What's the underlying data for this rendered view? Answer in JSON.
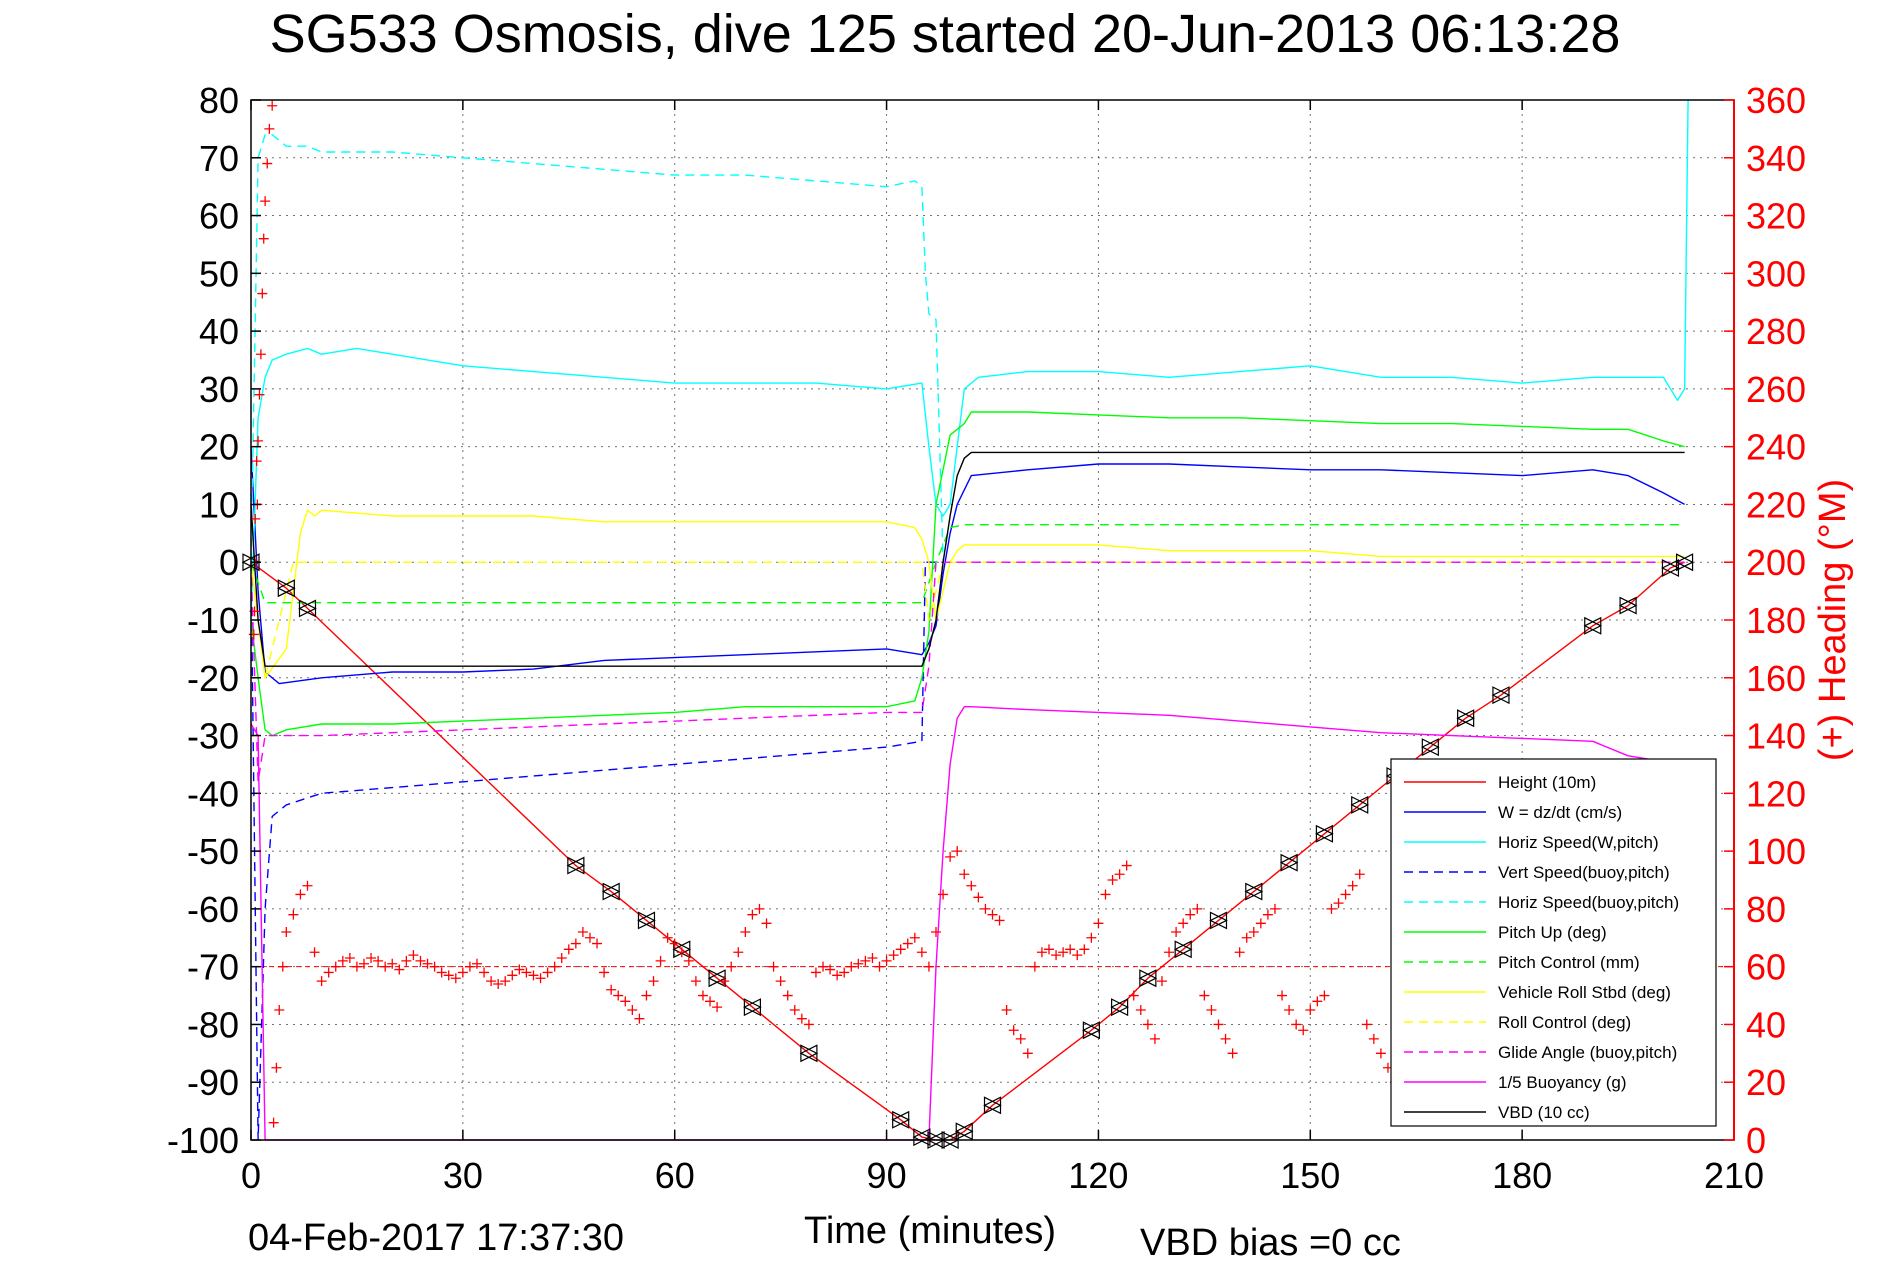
{
  "chart_data": {
    "type": "line",
    "title": "SG533 Osmosis, dive 125 started 20-Jun-2013 06:13:28",
    "xlabel": "Time (minutes)",
    "ylabel_right": "(+) Heading (°M)",
    "xlim": [
      0,
      210
    ],
    "ylim": [
      -100,
      80
    ],
    "ylim_right": [
      0,
      360
    ],
    "x_ticks": [
      0,
      30,
      60,
      90,
      120,
      150,
      180,
      210
    ],
    "y_ticks": [
      -100,
      -90,
      -80,
      -70,
      -60,
      -50,
      -40,
      -30,
      -20,
      -10,
      0,
      10,
      20,
      30,
      40,
      50,
      60,
      70,
      80
    ],
    "y_ticks_right": [
      0,
      20,
      40,
      60,
      80,
      100,
      120,
      140,
      160,
      180,
      200,
      220,
      240,
      260,
      280,
      300,
      320,
      340,
      360
    ],
    "grid": true,
    "legend_position": "lower-right",
    "footer_left": "04-Feb-2017 17:37:30",
    "footer_right": "VBD bias =0 cc",
    "colors": {
      "height": "#ff0000",
      "w": "#0000ff",
      "horiz": "#00ffff",
      "vert_buoy": "#0000ff",
      "horiz_buoy": "#00ffff",
      "pitch": "#00ff00",
      "pitch_ctrl": "#00ff00",
      "roll": "#ffff00",
      "roll_ctrl": "#ffff00",
      "glide": "#ff00ff",
      "buoyancy": "#ff00ff",
      "vbd": "#000000",
      "heading": "#ff0000",
      "right_axis": "#ff0000"
    },
    "series": [
      {
        "name": "Height (10m)",
        "color": "#ff0000",
        "dash": false,
        "x": [
          0,
          5,
          8,
          46,
          51,
          56,
          61,
          66,
          71,
          79,
          92,
          95,
          97,
          99,
          101,
          105,
          119,
          123,
          127,
          132,
          137,
          142,
          147,
          152,
          157,
          162,
          167,
          172,
          177,
          190,
          195,
          201,
          203
        ],
        "y": [
          0,
          -4.5,
          -8,
          -52.5,
          -57,
          -62,
          -67,
          -72,
          -77,
          -85,
          -96.5,
          -99.5,
          -100,
          -100,
          -98.5,
          -94,
          -81,
          -77,
          -72,
          -67,
          -62,
          -57,
          -52,
          -47,
          -42,
          -37,
          -32,
          -27,
          -23,
          -11,
          -7.5,
          -1,
          0
        ]
      },
      {
        "name": "W = dz/dt (cm/s)",
        "color": "#0000ff",
        "dash": false,
        "x": [
          0,
          1,
          2,
          4,
          10,
          20,
          30,
          40,
          50,
          60,
          70,
          80,
          90,
          95,
          96,
          97,
          98,
          99,
          100,
          102,
          110,
          120,
          130,
          140,
          150,
          160,
          170,
          180,
          190,
          195,
          200,
          203
        ],
        "y": [
          20,
          -5,
          -19,
          -21,
          -20,
          -19,
          -19,
          -18.5,
          -17,
          -16.5,
          -16,
          -15.5,
          -15,
          -16,
          -14,
          -11,
          -2,
          5,
          10,
          15,
          16,
          17,
          17,
          16.5,
          16,
          16,
          15.5,
          15,
          16,
          15,
          12,
          10
        ]
      },
      {
        "name": "Horiz Speed(W,pitch)",
        "color": "#00ffff",
        "dash": false,
        "x": [
          0,
          1,
          2,
          3,
          5,
          8,
          10,
          15,
          20,
          30,
          40,
          50,
          60,
          70,
          80,
          90,
          95,
          96,
          97,
          98,
          99,
          100,
          101,
          103,
          110,
          120,
          130,
          140,
          150,
          160,
          170,
          180,
          190,
          200,
          202,
          203,
          203.5
        ],
        "y": [
          -10,
          25,
          32,
          35,
          36,
          37,
          36,
          37,
          36,
          34,
          33,
          32,
          31,
          31,
          31,
          30,
          31,
          20,
          10,
          8,
          10,
          20,
          30,
          32,
          33,
          33,
          32,
          33,
          34,
          32,
          32,
          31,
          32,
          32,
          28,
          30,
          80
        ]
      },
      {
        "name": "Vert Speed(buoy,pitch)",
        "color": "#0000ff",
        "dash": true,
        "x": [
          0,
          1,
          2,
          3,
          5,
          10,
          20,
          30,
          40,
          50,
          60,
          70,
          80,
          90,
          95,
          95.5,
          96,
          100,
          120,
          140,
          160,
          180,
          200,
          203
        ],
        "y": [
          0,
          -100,
          -60,
          -44,
          -42,
          -40,
          -39,
          -38,
          -37,
          -36,
          -35,
          -34,
          -33,
          -32,
          -31,
          0,
          0,
          0,
          0,
          0,
          0,
          0,
          0,
          0
        ]
      },
      {
        "name": "Horiz Speed(buoy,pitch)",
        "color": "#00ffff",
        "dash": true,
        "x": [
          0,
          1,
          2,
          3,
          4,
          5,
          8,
          10,
          20,
          30,
          40,
          50,
          60,
          70,
          80,
          90,
          94,
          95,
          95.5,
          96,
          97,
          98,
          100,
          120,
          160,
          200,
          203
        ],
        "y": [
          0,
          70,
          74,
          74,
          73,
          72,
          72,
          71,
          71,
          70,
          69,
          68,
          67,
          67,
          66,
          65,
          66,
          65,
          50,
          43,
          42,
          0,
          0,
          0,
          0,
          0,
          0
        ]
      },
      {
        "name": "Pitch Up (deg)",
        "color": "#00ff00",
        "dash": false,
        "x": [
          0,
          1,
          2,
          3,
          5,
          10,
          20,
          30,
          40,
          50,
          60,
          70,
          80,
          90,
          94,
          95,
          96,
          97,
          99,
          101,
          102,
          110,
          120,
          130,
          140,
          150,
          160,
          170,
          180,
          190,
          195,
          200,
          203
        ],
        "y": [
          -10,
          -20,
          -29,
          -30,
          -29,
          -28,
          -28,
          -27.5,
          -27,
          -26.5,
          -26,
          -25,
          -25,
          -25,
          -24,
          -20,
          -12,
          10,
          22,
          24,
          26,
          26,
          25.5,
          25,
          25,
          24.5,
          24,
          24,
          23.5,
          23,
          23,
          21,
          20
        ]
      },
      {
        "name": "Pitch Control (mm)",
        "color": "#00ff00",
        "dash": true,
        "x": [
          0,
          2,
          5,
          10,
          30,
          60,
          90,
          95,
          97,
          99,
          101,
          120,
          150,
          180,
          200,
          203
        ],
        "y": [
          0,
          -7,
          -7,
          -7,
          -7,
          -7,
          -7,
          -7,
          0,
          6,
          6.5,
          6.5,
          6.5,
          6.5,
          6.5,
          6.5
        ]
      },
      {
        "name": "Vehicle Roll Stbd (deg)",
        "color": "#ffff00",
        "dash": false,
        "x": [
          0,
          2,
          5,
          7,
          8,
          9,
          10,
          20,
          30,
          40,
          50,
          60,
          70,
          80,
          90,
          94,
          95,
          96,
          97,
          98,
          99,
          100,
          101,
          110,
          120,
          130,
          140,
          150,
          160,
          170,
          180,
          190,
          200,
          203
        ],
        "y": [
          0,
          -20,
          -15,
          5,
          9,
          8,
          9,
          8,
          8,
          8,
          7,
          7,
          7,
          7,
          7,
          6,
          4,
          0,
          -10,
          -5,
          0,
          2,
          3,
          3,
          3,
          2,
          2,
          2,
          1,
          1,
          1,
          1,
          1,
          1
        ]
      },
      {
        "name": "Roll Control (deg)",
        "color": "#ffff00",
        "dash": true,
        "x": [
          0,
          2,
          4,
          6,
          8,
          10,
          30,
          60,
          90,
          95,
          96,
          98,
          100,
          120,
          150,
          180,
          203
        ],
        "y": [
          0,
          -20,
          -10,
          0,
          0,
          0,
          0,
          0,
          0,
          0,
          -10,
          0,
          0,
          0,
          0,
          0,
          0
        ]
      },
      {
        "name": "Glide Angle (buoy,pitch)",
        "color": "#ff00ff",
        "dash": true,
        "x": [
          0,
          1,
          2,
          4,
          10,
          30,
          50,
          70,
          90,
          95,
          96,
          97,
          98,
          100,
          120,
          150,
          180,
          200,
          203
        ],
        "y": [
          0,
          -38,
          -30,
          -30,
          -30,
          -29,
          -28,
          -27,
          -26,
          -26,
          -18,
          0,
          0,
          0,
          0,
          0,
          0,
          0,
          0
        ]
      },
      {
        "name": "1/5 Buoyancy (g)",
        "color": "#ff00ff",
        "dash": false,
        "x": [
          0,
          1,
          2,
          2.5,
          3,
          5,
          94,
          95,
          96,
          97,
          98,
          99,
          100,
          101,
          102,
          110,
          120,
          130,
          140,
          150,
          160,
          170,
          180,
          190,
          192,
          195,
          200,
          203
        ],
        "y": [
          -28,
          -30,
          -100,
          -100,
          -100,
          -100,
          -100,
          -100,
          -100,
          -70,
          -50,
          -35,
          -27,
          -25,
          -25,
          -25.5,
          -26,
          -26.5,
          -27.5,
          -28.5,
          -29.5,
          -30,
          -30.5,
          -31,
          -32,
          -33.5,
          -34.5,
          -35
        ]
      },
      {
        "name": "VBD (10 cc)",
        "color": "#000000",
        "dash": false,
        "x": [
          0,
          1,
          2,
          3,
          5,
          10,
          40,
          70,
          90,
          95,
          96,
          97,
          98,
          99,
          100,
          101,
          102,
          120,
          150,
          180,
          200,
          203
        ],
        "y": [
          10,
          -10,
          -18,
          -18,
          -18,
          -18,
          -18,
          -18,
          -18,
          -18,
          -15,
          -10,
          0,
          8,
          15,
          18,
          19,
          19,
          19,
          19,
          19,
          19
        ]
      }
    ],
    "heading_points": [
      [
        0.4,
        175
      ],
      [
        0.5,
        183
      ],
      [
        0.6,
        215
      ],
      [
        0.7,
        200
      ],
      [
        0.8,
        235
      ],
      [
        0.9,
        220
      ],
      [
        1,
        242
      ],
      [
        1.2,
        258
      ],
      [
        1.4,
        272
      ],
      [
        1.6,
        293
      ],
      [
        1.8,
        312
      ],
      [
        2,
        325
      ],
      [
        2.3,
        338
      ],
      [
        2.6,
        350
      ],
      [
        3,
        358
      ],
      [
        3.2,
        6
      ],
      [
        3.6,
        25
      ],
      [
        4,
        45
      ],
      [
        4.5,
        60
      ],
      [
        5,
        72
      ],
      [
        6,
        78
      ],
      [
        7,
        85
      ],
      [
        8,
        88
      ],
      [
        9,
        65
      ],
      [
        10,
        55
      ],
      [
        11,
        58
      ],
      [
        12,
        60
      ],
      [
        13,
        62
      ],
      [
        14,
        63
      ],
      [
        15,
        60
      ],
      [
        16,
        61
      ],
      [
        17,
        63
      ],
      [
        18,
        62
      ],
      [
        19,
        60
      ],
      [
        20,
        61
      ],
      [
        21,
        59
      ],
      [
        22,
        62
      ],
      [
        23,
        64
      ],
      [
        24,
        62
      ],
      [
        25,
        61
      ],
      [
        26,
        60
      ],
      [
        27,
        58
      ],
      [
        28,
        57
      ],
      [
        29,
        56
      ],
      [
        30,
        58
      ],
      [
        31,
        60
      ],
      [
        32,
        61
      ],
      [
        33,
        58
      ],
      [
        34,
        55
      ],
      [
        35,
        54
      ],
      [
        36,
        55
      ],
      [
        37,
        57
      ],
      [
        38,
        59
      ],
      [
        39,
        58
      ],
      [
        40,
        57
      ],
      [
        41,
        56
      ],
      [
        42,
        58
      ],
      [
        43,
        60
      ],
      [
        44,
        63
      ],
      [
        45,
        66
      ],
      [
        46,
        68
      ],
      [
        47,
        72
      ],
      [
        48,
        70
      ],
      [
        49,
        68
      ],
      [
        50,
        58
      ],
      [
        51,
        52
      ],
      [
        52,
        50
      ],
      [
        53,
        48
      ],
      [
        54,
        45
      ],
      [
        55,
        42
      ],
      [
        56,
        50
      ],
      [
        57,
        55
      ],
      [
        58,
        62
      ],
      [
        59,
        70
      ],
      [
        60,
        68
      ],
      [
        61,
        65
      ],
      [
        62,
        62
      ],
      [
        63,
        55
      ],
      [
        64,
        50
      ],
      [
        65,
        48
      ],
      [
        66,
        46
      ],
      [
        67,
        55
      ],
      [
        68,
        60
      ],
      [
        69,
        65
      ],
      [
        70,
        72
      ],
      [
        71,
        78
      ],
      [
        72,
        80
      ],
      [
        73,
        75
      ],
      [
        74,
        60
      ],
      [
        75,
        55
      ],
      [
        76,
        50
      ],
      [
        77,
        45
      ],
      [
        78,
        42
      ],
      [
        79,
        40
      ],
      [
        80,
        58
      ],
      [
        81,
        60
      ],
      [
        82,
        59
      ],
      [
        83,
        57
      ],
      [
        84,
        58
      ],
      [
        85,
        60
      ],
      [
        86,
        61
      ],
      [
        87,
        62
      ],
      [
        88,
        63
      ],
      [
        89,
        60
      ],
      [
        90,
        62
      ],
      [
        91,
        64
      ],
      [
        92,
        66
      ],
      [
        93,
        68
      ],
      [
        94,
        70
      ],
      [
        95,
        65
      ],
      [
        96,
        60
      ],
      [
        97,
        72
      ],
      [
        98,
        85
      ],
      [
        99,
        98
      ],
      [
        100,
        100
      ],
      [
        101,
        92
      ],
      [
        102,
        88
      ],
      [
        103,
        84
      ],
      [
        104,
        80
      ],
      [
        105,
        78
      ],
      [
        106,
        76
      ],
      [
        107,
        45
      ],
      [
        108,
        38
      ],
      [
        109,
        35
      ],
      [
        110,
        30
      ],
      [
        111,
        60
      ],
      [
        112,
        65
      ],
      [
        113,
        66
      ],
      [
        114,
        64
      ],
      [
        115,
        65
      ],
      [
        116,
        66
      ],
      [
        117,
        64
      ],
      [
        118,
        66
      ],
      [
        119,
        70
      ],
      [
        120,
        75
      ],
      [
        121,
        85
      ],
      [
        122,
        90
      ],
      [
        123,
        92
      ],
      [
        124,
        95
      ],
      [
        125,
        50
      ],
      [
        126,
        45
      ],
      [
        127,
        40
      ],
      [
        128,
        35
      ],
      [
        129,
        55
      ],
      [
        130,
        65
      ],
      [
        131,
        72
      ],
      [
        132,
        75
      ],
      [
        133,
        78
      ],
      [
        134,
        80
      ],
      [
        135,
        50
      ],
      [
        136,
        45
      ],
      [
        137,
        40
      ],
      [
        138,
        35
      ],
      [
        139,
        30
      ],
      [
        140,
        65
      ],
      [
        141,
        70
      ],
      [
        142,
        72
      ],
      [
        143,
        75
      ],
      [
        144,
        78
      ],
      [
        145,
        80
      ],
      [
        146,
        50
      ],
      [
        147,
        45
      ],
      [
        148,
        40
      ],
      [
        149,
        38
      ],
      [
        150,
        45
      ],
      [
        151,
        48
      ],
      [
        152,
        50
      ],
      [
        153,
        80
      ],
      [
        154,
        82
      ],
      [
        155,
        85
      ],
      [
        156,
        88
      ],
      [
        157,
        92
      ],
      [
        158,
        40
      ],
      [
        159,
        35
      ],
      [
        160,
        30
      ],
      [
        161,
        25
      ],
      [
        162,
        20
      ]
    ]
  }
}
